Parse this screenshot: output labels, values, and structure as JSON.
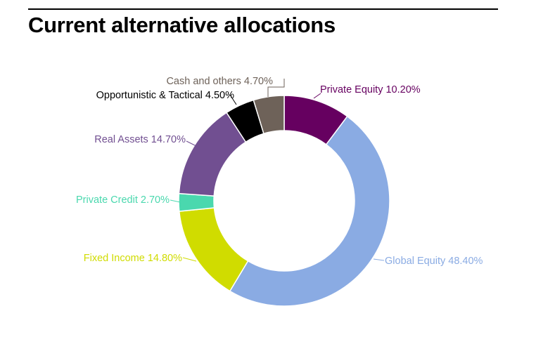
{
  "header": {
    "title": "Current alternative allocations"
  },
  "chart_data": {
    "type": "pie",
    "donut": true,
    "title": "Current alternative allocations",
    "legend": "none",
    "label_style": "outside labels with leader lines",
    "unit": "%",
    "slices": [
      {
        "label": "Private Equity",
        "value": 10.2,
        "display": "Private Equity 10.20%",
        "color": "#660060"
      },
      {
        "label": "Global Equity",
        "value": 48.4,
        "display": "Global Equity 48.40%",
        "color": "#8aabe3"
      },
      {
        "label": "Fixed Income",
        "value": 14.8,
        "display": "Fixed Income 14.80%",
        "color": "#d0dc00"
      },
      {
        "label": "Private Credit",
        "value": 2.7,
        "display": "Private Credit 2.70%",
        "color": "#4ad8ae"
      },
      {
        "label": "Real Assets",
        "value": 14.7,
        "display": "Real Assets 14.70%",
        "color": "#714f91"
      },
      {
        "label": "Opportunistic & Tactical",
        "value": 4.5,
        "display": "Opportunistic & Tactical 4.50%",
        "color": "#000000"
      },
      {
        "label": "Cash and others",
        "value": 4.7,
        "display": "Cash and others 4.70%",
        "color": "#6e6259"
      }
    ]
  }
}
